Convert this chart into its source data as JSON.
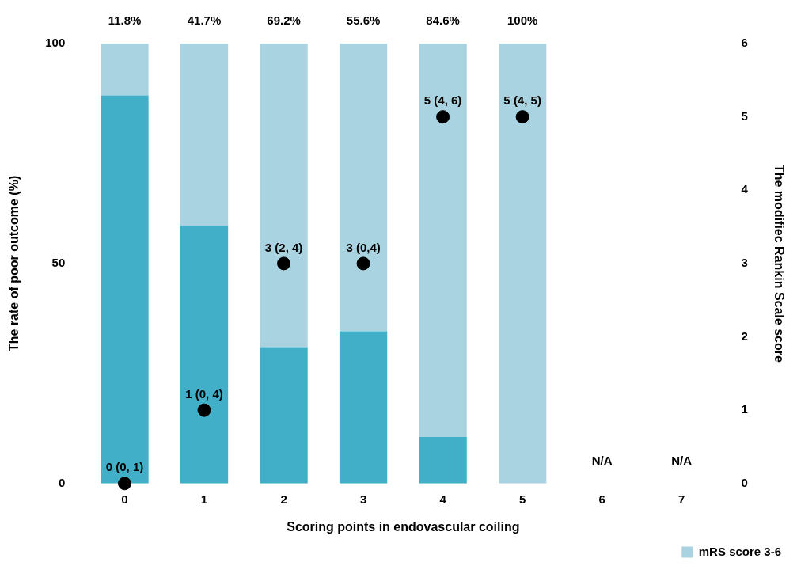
{
  "chart_data": {
    "type": "bar",
    "stacked": true,
    "xlabel": "Scoring points in endovascular coiling",
    "ylabel": "The rate of poor outcome (%)",
    "y2label": "The modifiec Rankin Scale score",
    "categories": [
      "0",
      "1",
      "2",
      "3",
      "4",
      "5",
      "6",
      "7"
    ],
    "series": [
      {
        "color": "#41afc8",
        "values": [
          88.2,
          58.6,
          31,
          34.6,
          10.6,
          0,
          null,
          null
        ]
      },
      {
        "name": "mRS score 3-6",
        "color": "#a9d3e0",
        "values": [
          11.8,
          41.4,
          69,
          65.4,
          89.4,
          100,
          null,
          null
        ]
      },
      {
        "type": "scatter",
        "axis": "y2",
        "color": "#000000",
        "marker": "circle",
        "x": [
          "0",
          "1",
          "2",
          "3",
          "4",
          "5"
        ],
        "values": [
          0,
          1,
          3,
          3,
          5,
          5
        ],
        "value_labels": [
          "0 (0, 1)",
          "1 (0, 4)",
          "3 (2, 4)",
          "3 (0,4)",
          "5 (4, 6)",
          "5 (4, 5)"
        ]
      }
    ],
    "ylim": [
      0,
      100
    ],
    "yticks": [
      0,
      50,
      100
    ],
    "y2lim": [
      0,
      6
    ],
    "y2ticks": [
      0,
      1,
      2,
      3,
      4,
      5,
      6
    ],
    "grid": false,
    "legend": "bottom right",
    "annotations": [
      "11.8%",
      "41.7%",
      "69.2%",
      "55.6%",
      "84.6%",
      "100%",
      "N/A",
      "N/A"
    ]
  }
}
